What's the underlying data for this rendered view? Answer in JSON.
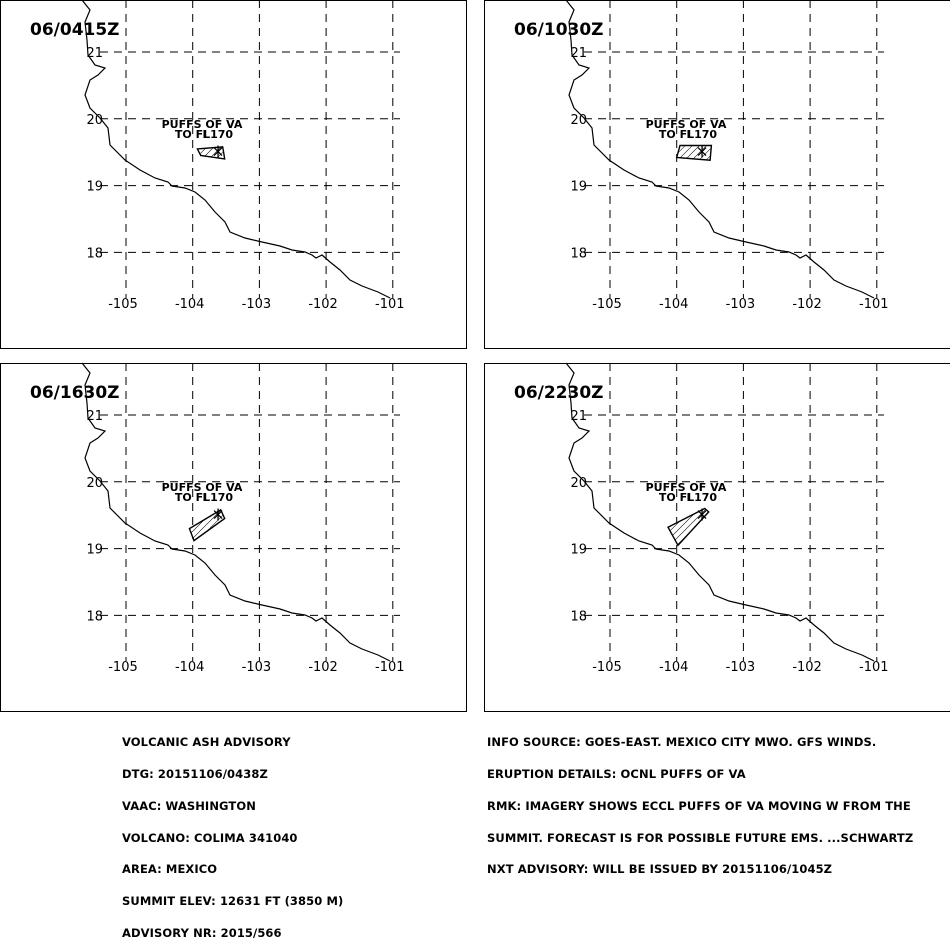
{
  "panels": [
    {
      "time_label": "06/0415Z",
      "cloud_label_1": "PUFFS OF VA",
      "cloud_label_2": "TO FL170",
      "ash_polygon": [
        [
          -103.93,
          19.55
        ],
        [
          -103.55,
          19.58
        ],
        [
          -103.52,
          19.4
        ],
        [
          -103.88,
          19.45
        ]
      ]
    },
    {
      "time_label": "06/1030Z",
      "cloud_label_1": "PUFFS OF VA",
      "cloud_label_2": "TO FL170",
      "ash_polygon": [
        [
          -103.95,
          19.6
        ],
        [
          -103.48,
          19.6
        ],
        [
          -103.5,
          19.38
        ],
        [
          -104.0,
          19.42
        ]
      ]
    },
    {
      "time_label": "06/1630Z",
      "cloud_label_1": "PUFFS OF VA",
      "cloud_label_2": "TO FL170",
      "ash_polygon": [
        [
          -104.05,
          19.3
        ],
        [
          -103.58,
          19.58
        ],
        [
          -103.52,
          19.45
        ],
        [
          -103.98,
          19.12
        ]
      ]
    },
    {
      "time_label": "06/2230Z",
      "cloud_label_1": "PUFFS OF VA",
      "cloud_label_2": "TO FL170",
      "ash_polygon": [
        [
          -104.13,
          19.32
        ],
        [
          -103.58,
          19.6
        ],
        [
          -103.52,
          19.55
        ],
        [
          -103.98,
          19.05
        ]
      ]
    }
  ],
  "axes": {
    "lon_ticks": [
      "-105",
      "-104",
      "-103",
      "-102",
      "-101"
    ],
    "lat_ticks": [
      "21",
      "20",
      "19",
      "18"
    ]
  },
  "volcano": {
    "lon": -103.62,
    "lat": 19.51
  },
  "advisory_left": [
    "VOLCANIC ASH ADVISORY",
    "DTG: 20151106/0438Z",
    "VAAC: WASHINGTON",
    "VOLCANO: COLIMA 341040",
    "AREA: MEXICO",
    "SUMMIT ELEV: 12631 FT (3850 M)",
    "ADVISORY NR: 2015/566"
  ],
  "advisory_right": [
    "INFO SOURCE: GOES-EAST. MEXICO CITY MWO. GFS WINDS.",
    "ERUPTION DETAILS: OCNL PUFFS OF VA",
    "RMK: IMAGERY SHOWS ECCL PUFFS OF VA MOVING W FROM THE",
    "SUMMIT. FORECAST IS FOR POSSIBLE FUTURE EMS. ...SCHWARTZ",
    "NXT ADVISORY: WILL BE ISSUED BY 20151106/1045Z"
  ]
}
